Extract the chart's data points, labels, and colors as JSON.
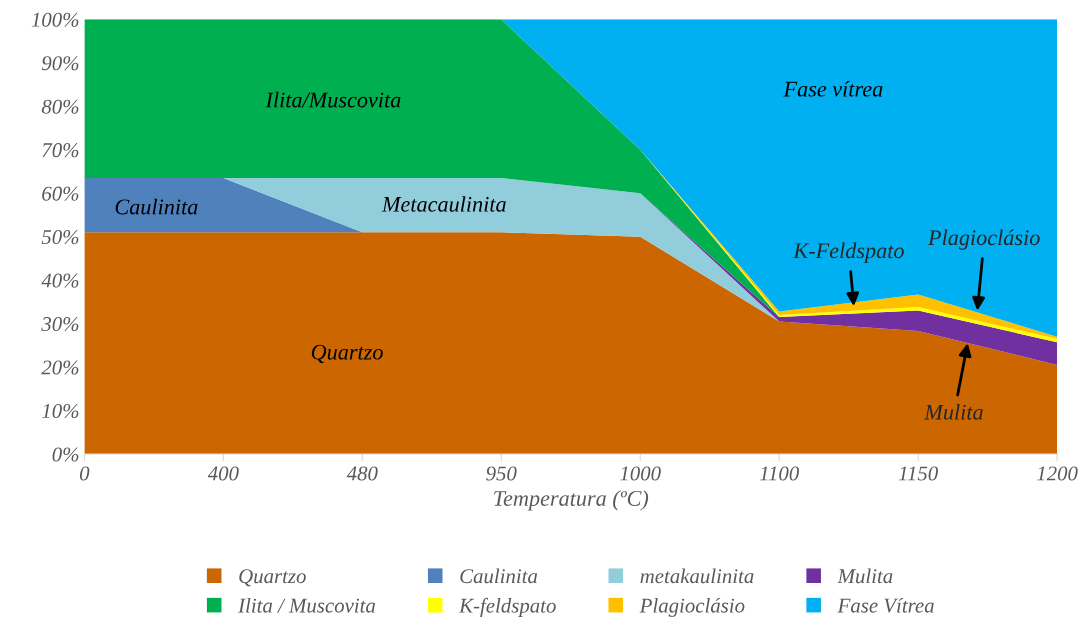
{
  "chart_data": {
    "type": "area",
    "stacked": true,
    "xlabel": "Temperatura (ºC)",
    "categories": [
      "0",
      "400",
      "480",
      "950",
      "1000",
      "1100",
      "1150",
      "1200"
    ],
    "series": [
      {
        "name": "Quartzo",
        "color": "#cc6600",
        "values": [
          51,
          51,
          51,
          51,
          50,
          30.5,
          28.3,
          20.5
        ]
      },
      {
        "name": "Caulinita",
        "color": "#4f81bd",
        "values": [
          12.5,
          12.5,
          0,
          null,
          null,
          null,
          null,
          null
        ]
      },
      {
        "name": "metakaulinita",
        "color": "#92cddc",
        "values": [
          null,
          0,
          12.5,
          12.5,
          10,
          0,
          null,
          null
        ]
      },
      {
        "name": "Mulita",
        "color": "#7030a0",
        "values": [
          null,
          null,
          null,
          null,
          0,
          1,
          4.7,
          5.2
        ]
      },
      {
        "name": "Ilita / Muscovita",
        "color": "#00b050",
        "values": [
          36.5,
          36.5,
          36.5,
          36.5,
          10,
          0,
          null,
          null
        ]
      },
      {
        "name": "K-feldspato",
        "color": "#ffff00",
        "values": [
          null,
          null,
          null,
          null,
          0,
          0.5,
          0.8,
          0.8
        ]
      },
      {
        "name": "Plagioclásio",
        "color": "#ffc000",
        "values": [
          null,
          null,
          null,
          null,
          0,
          0.8,
          2.9,
          0.5
        ]
      },
      {
        "name": "Fase Vítrea",
        "color": "#00b0f0",
        "values": [
          null,
          null,
          null,
          0,
          30,
          67.2,
          63.3,
          73.0
        ]
      }
    ],
    "ylim": [
      0,
      100
    ],
    "yticks": [
      {
        "value": 0,
        "label": "0%"
      },
      {
        "value": 10,
        "label": "10%"
      },
      {
        "value": 20,
        "label": "20%"
      },
      {
        "value": 30,
        "label": "30%"
      },
      {
        "value": 40,
        "label": "40%"
      },
      {
        "value": 50,
        "label": "50%"
      },
      {
        "value": 60,
        "label": "60%"
      },
      {
        "value": 70,
        "label": "70%"
      },
      {
        "value": 80,
        "label": "80%"
      },
      {
        "value": 90,
        "label": "90%"
      },
      {
        "value": 100,
        "label": "100%"
      }
    ],
    "annotations": [
      "Ilita/Muscovita",
      "Caulinita",
      "Metacaulinita",
      "Quartzo",
      "Fase vítrea",
      {
        "text": "K-Feldspato",
        "y": 34
      },
      {
        "text": "Plagioclásio",
        "y": 33
      },
      {
        "text": "Mulita",
        "y": 25.5
      }
    ],
    "grid": false,
    "legend": "bottom"
  }
}
